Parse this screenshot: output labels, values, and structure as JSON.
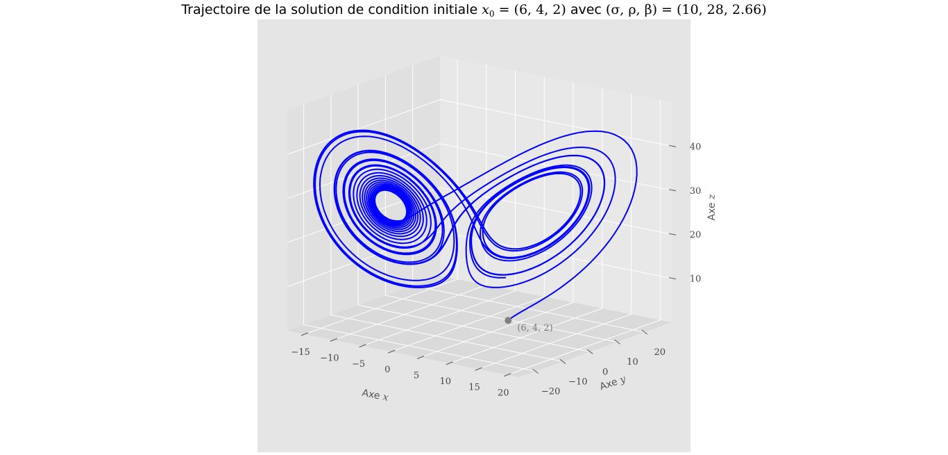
{
  "chart_data": {
    "type": "line3d",
    "title_prefix": "Trajectoire de la solution de condition initiale ",
    "title_x0_symbol": "x",
    "title_x0_sub": "0",
    "title_x0_value": " = (6, 4, 2)",
    "title_middle": " avec ",
    "title_params": "(σ, ρ, β) = (10, 28, 2.66)",
    "system": "lorenz",
    "params": {
      "sigma": 10,
      "rho": 28,
      "beta": 2.66
    },
    "initial_condition": [
      6,
      4,
      2
    ],
    "xlabel_prefix": "Axe ",
    "xlabel_var": "x",
    "ylabel_prefix": "Axe ",
    "ylabel_var": "y",
    "zlabel_prefix": "Axe ",
    "zlabel_var": "z",
    "xlim": [
      -18,
      22
    ],
    "ylim": [
      -26,
      30
    ],
    "zlim": [
      0,
      50
    ],
    "xticks": [
      -15,
      -10,
      -5,
      0,
      5,
      10,
      15,
      20
    ],
    "xtick_labels": [
      "−15",
      "−10",
      "−5",
      "0",
      "5",
      "10",
      "15",
      "20"
    ],
    "yticks": [
      -20,
      -10,
      0,
      10,
      20
    ],
    "ytick_labels": [
      "−20",
      "−10",
      "0",
      "10",
      "20"
    ],
    "zticks": [
      10,
      20,
      30,
      40
    ],
    "ztick_labels": [
      "10",
      "20",
      "30",
      "40"
    ],
    "annotation": "(6, 4, 2)",
    "line_color": "#0000ff",
    "marker_color": "#808080",
    "pane_color": "#e5e5e5",
    "grid": true
  }
}
